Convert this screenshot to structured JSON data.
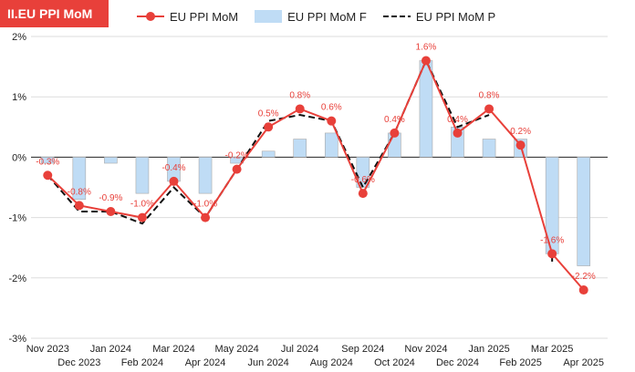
{
  "title": "II.EU PPI MoM",
  "colors": {
    "actual": "#e8403a",
    "forecast": "#bfdcf5",
    "forecast_border": "#a9a9a9",
    "previous": "#111111",
    "grid": "#dddddd"
  },
  "chart_data": {
    "type": "bar",
    "title": "II.EU PPI MoM",
    "categories": [
      "Nov 2023",
      "Dec 2023",
      "Jan 2024",
      "Feb 2024",
      "Mar 2024",
      "Apr 2024",
      "May 2024",
      "Jun 2024",
      "Jul 2024",
      "Aug 2024",
      "Sep 2024",
      "Oct 2024",
      "Nov 2024",
      "Dec 2024",
      "Jan 2025",
      "Feb 2025",
      "Mar 2025",
      "Apr 2025"
    ],
    "ylim": [
      -3,
      2
    ],
    "yticks": [
      -3,
      -2,
      -1,
      0,
      1,
      2
    ],
    "ytick_labels": [
      "-3%",
      "-2%",
      "-1%",
      "0%",
      "1%",
      "2%"
    ],
    "legend": [
      "EU PPI MoM",
      "EU PPI MoM F",
      "EU PPI MoM P"
    ],
    "legend_position": "top",
    "grid": true,
    "series": [
      {
        "name": "EU PPI MoM",
        "type": "line",
        "values": [
          -0.3,
          -0.8,
          -0.9,
          -1.0,
          -0.4,
          -1.0,
          -0.2,
          0.5,
          0.8,
          0.6,
          -0.6,
          0.4,
          1.6,
          0.4,
          0.8,
          0.2,
          -1.6,
          -2.2
        ],
        "labels": [
          "-0.3%",
          "-0.8%",
          "-0.9%",
          "-1.0%",
          "-0.4%",
          "-1.0%",
          "-0.2%",
          "0.5%",
          "0.8%",
          "0.6%",
          "-0.6%",
          "0.4%",
          "1.6%",
          "0.4%",
          "0.8%",
          "0.2%",
          "-1.6%",
          "-2.2%"
        ]
      },
      {
        "name": "EU PPI MoM F",
        "type": "bar",
        "values": [
          -0.1,
          -0.7,
          -0.1,
          -0.6,
          -0.4,
          -0.6,
          -0.1,
          0.1,
          0.3,
          0.4,
          -0.5,
          0.4,
          1.6,
          0.5,
          0.3,
          0.3,
          -1.6,
          -1.8
        ]
      },
      {
        "name": "EU PPI MoM P",
        "type": "line-dashed",
        "values": [
          -0.3,
          -0.9,
          -0.9,
          -1.1,
          -0.5,
          -1.0,
          -0.2,
          0.6,
          0.7,
          0.6,
          -0.5,
          0.4,
          1.6,
          0.5,
          0.7,
          null,
          -1.7,
          null
        ]
      }
    ]
  }
}
